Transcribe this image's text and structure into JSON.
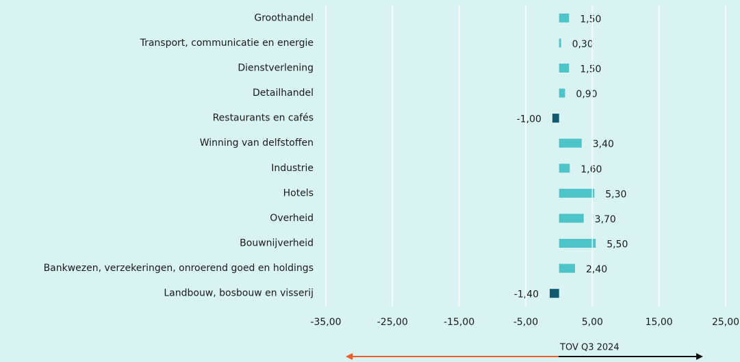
{
  "chart_data": {
    "type": "barh",
    "categories": [
      "Groothandel",
      "Transport, communicatie en energie",
      "Dienstverlening",
      "Detailhandel",
      "Restaurants en cafés",
      "Winning van delfstoffen",
      "Industrie",
      "Hotels",
      "Overheid",
      "Bouwnijverheid",
      "Bankwezen, verzekeringen, onroerend goed en holdings",
      "Landbouw, bosbouw en visserij"
    ],
    "values": [
      1.5,
      0.3,
      1.5,
      0.9,
      -1.0,
      3.4,
      1.6,
      5.3,
      3.7,
      5.5,
      2.4,
      -1.4
    ],
    "value_labels": [
      "1,50",
      "0,30",
      "1,50",
      "0,90",
      "-1,00",
      "3,40",
      "1,60",
      "5,30",
      "3,70",
      "5,50",
      "2,40",
      "-1,40"
    ],
    "color": "#4cc4c8",
    "negative_color": "#0f5a6e",
    "xlim": [
      -35,
      25
    ],
    "xticks": [
      {
        "value": -35,
        "label": "-35,00"
      },
      {
        "value": -25,
        "label": "-25,00"
      },
      {
        "value": -15,
        "label": "-15,00"
      },
      {
        "value": -5,
        "label": "-5,00"
      },
      {
        "value": 5,
        "label": "5,00"
      },
      {
        "value": 15,
        "label": "15,00"
      },
      {
        "value": 25,
        "label": "25,00"
      }
    ],
    "grid": true,
    "annotation": "TOV Q3 2024"
  }
}
